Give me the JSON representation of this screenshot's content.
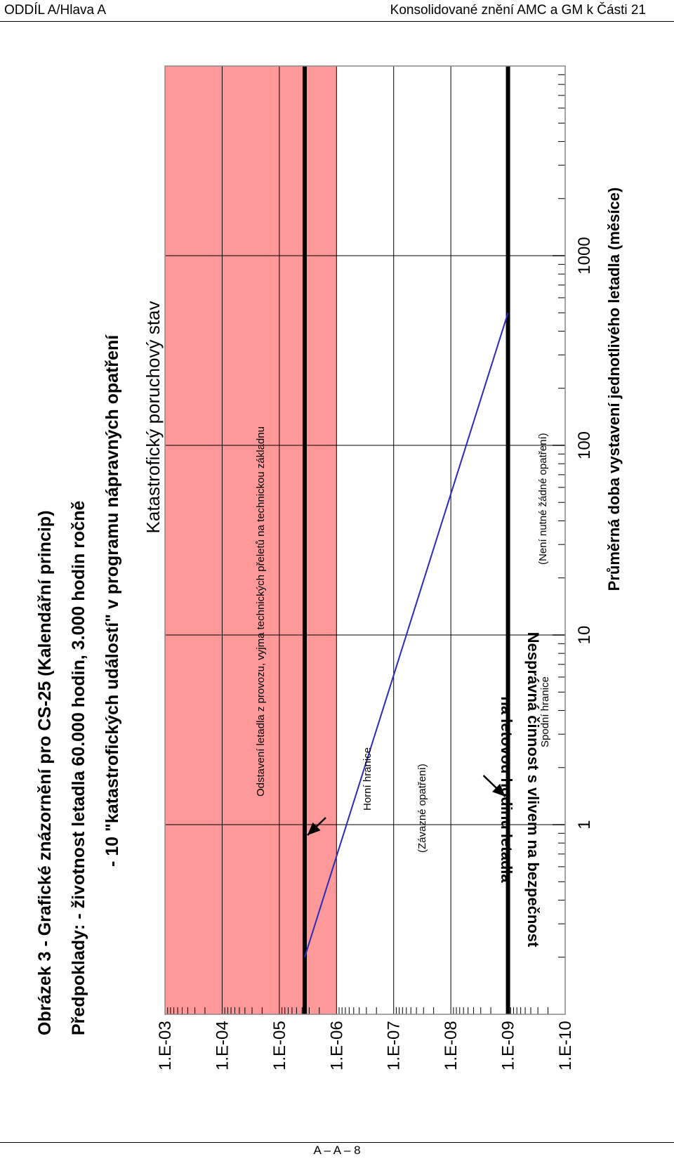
{
  "header": {
    "left": "ODDÍL A/Hlava A",
    "right": "Konsolidované znění AMC a GM k Části 21"
  },
  "footer": {
    "page": "A – A – 8"
  },
  "figure": {
    "title_lines": [
      "Obrázek 3 - Grafické znázornění pro CS-25 (Kalendářní princip)",
      "Předpoklady: - životnost letadla 60.000 hodin, 3.000 hodin ročně",
      "- 10 \"katastrofických událostí\" v programu nápravných opatření"
    ],
    "colors": {
      "catastrophic_band": "#ff9999",
      "line": "#2b2bb8",
      "limit": "#000000",
      "grid": "#000000"
    }
  },
  "chart_data": {
    "type": "line",
    "orientation": "rotated 90° counter-clockwise",
    "xlabel": "Průměrná doba vystavení jednotlivého letadla (měsíce)",
    "ylabel": [
      "Nesprávná činnost s vlivem na bezpečnost",
      "na letovou hodinu letadla"
    ],
    "xscale": "log",
    "yscale": "log",
    "xlim": [
      0.1,
      10000
    ],
    "ylim": [
      1e-10,
      0.001
    ],
    "x_ticks": [
      "1",
      "10",
      "100",
      "1000"
    ],
    "y_ticks": [
      "1.E-03",
      "1.E-04",
      "1.E-05",
      "1.E-06",
      "1.E-07",
      "1.E-08",
      "1.E-09",
      "1.E-10"
    ],
    "grid": true,
    "regions": [
      {
        "label": "Katastrofický poruchový stav",
        "from": 1e-06,
        "to": 0.001,
        "color": "#ff9999"
      }
    ],
    "reference_lines": [
      {
        "label": "Horní hranice",
        "y": 3.6e-06
      },
      {
        "label": "Spodní hranice",
        "y": 1e-09
      }
    ],
    "annotations": [
      "Odstavení letadla z provozu, vyjma technických přeletů na technickou základnu",
      "(Závazné opatření)",
      "(Není nutné žádné opatření)"
    ],
    "series": [
      {
        "x": [
          0.2,
          500
        ],
        "y": [
          3.6e-06,
          1e-09
        ]
      }
    ]
  }
}
